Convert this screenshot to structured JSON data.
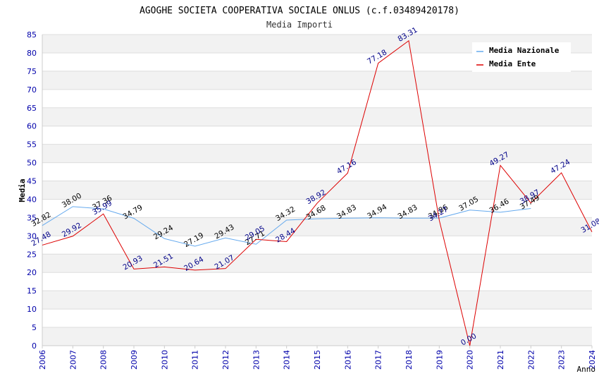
{
  "chart_data": {
    "type": "line",
    "title": "AGOGHE SOCIETA COOPERATIVA SOCIALE ONLUS (c.f.03489420178)",
    "subtitle": "Media Importi",
    "xlabel": "Anno",
    "ylabel": "Media",
    "ylim": [
      0,
      85
    ],
    "yticks": [
      0,
      5,
      10,
      15,
      20,
      25,
      30,
      35,
      40,
      45,
      50,
      55,
      60,
      65,
      70,
      75,
      80,
      85
    ],
    "grid": true,
    "legend_position": "top-right",
    "categories": [
      "2006",
      "2007",
      "2008",
      "2009",
      "2010",
      "2011",
      "2012",
      "2013",
      "2014",
      "2015",
      "2016",
      "2017",
      "2018",
      "2019",
      "2020",
      "2021",
      "2022",
      "2023",
      "2024"
    ],
    "series": [
      {
        "name": "Media Nazionale",
        "color": "#66aaee",
        "label_color": "#000000",
        "values": [
          32.82,
          38.0,
          37.36,
          34.79,
          29.24,
          27.19,
          29.43,
          27.71,
          34.32,
          34.68,
          34.83,
          34.94,
          34.83,
          34.86,
          37.05,
          36.46,
          37.49,
          null,
          null
        ],
        "labels": [
          "32.82",
          "38.00",
          "37.36",
          "34.79",
          "29.24",
          "27.19",
          "29.43",
          "27.71",
          "34.32",
          "34.68",
          "34.83",
          "34.94",
          "34.83",
          "34.86",
          "37.05",
          "36.46",
          "37.49",
          null,
          null
        ]
      },
      {
        "name": "Media Ente",
        "color": "#dd0000",
        "label_color": "#000088",
        "values": [
          27.48,
          29.92,
          35.99,
          20.93,
          21.51,
          20.64,
          21.07,
          29.05,
          28.44,
          38.92,
          47.16,
          77.18,
          83.31,
          34.27,
          0.0,
          49.27,
          38.97,
          47.24,
          31.08
        ],
        "labels": [
          "27.48",
          "29.92",
          "35.99",
          "20.93",
          "21.51",
          "20.64",
          "21.07",
          "29.05",
          "28.44",
          "38.92",
          "47.16",
          "77.18",
          "83.31",
          "34.27",
          "0.00",
          "49.27",
          "38.97",
          "47.24",
          "31.08"
        ]
      }
    ]
  }
}
